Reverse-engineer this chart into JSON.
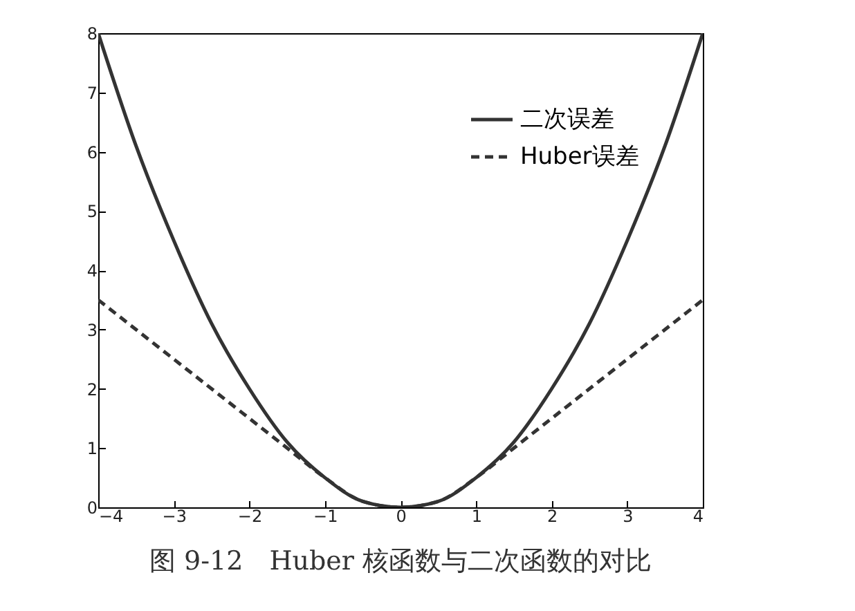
{
  "chart_data": {
    "type": "line",
    "title": "图 9-12　Huber 核函数与二次函数的对比",
    "x": [
      -4,
      -3.5,
      -3,
      -2.5,
      -2,
      -1.5,
      -1,
      -0.5,
      0,
      0.5,
      1,
      1.5,
      2,
      2.5,
      3,
      3.5,
      4
    ],
    "series": [
      {
        "name": "二次误差",
        "color": "#333333",
        "line_style": "solid",
        "values": [
          8,
          6.1,
          4.5,
          3.1,
          2,
          1.1,
          0.5,
          0.1,
          0,
          0.1,
          0.5,
          1.1,
          2,
          3.1,
          4.5,
          6.1,
          8
        ]
      },
      {
        "name": "Huber误差",
        "color": "#333333",
        "line_style": "dashed",
        "values": [
          3.5,
          3,
          2.5,
          2,
          1.5,
          1,
          0.5,
          0.1,
          0,
          0.1,
          0.5,
          1,
          1.5,
          2,
          2.5,
          3,
          3.5
        ]
      }
    ],
    "xlim": [
      -4,
      4
    ],
    "xticks": [
      -4,
      -3,
      -2,
      -1,
      0,
      1,
      2,
      3,
      4
    ],
    "ylim": [
      0,
      8
    ],
    "yticks": [
      0,
      1,
      2,
      3,
      4,
      5,
      6,
      7,
      8
    ],
    "grid": false,
    "legend": "top right",
    "marker": "none"
  }
}
